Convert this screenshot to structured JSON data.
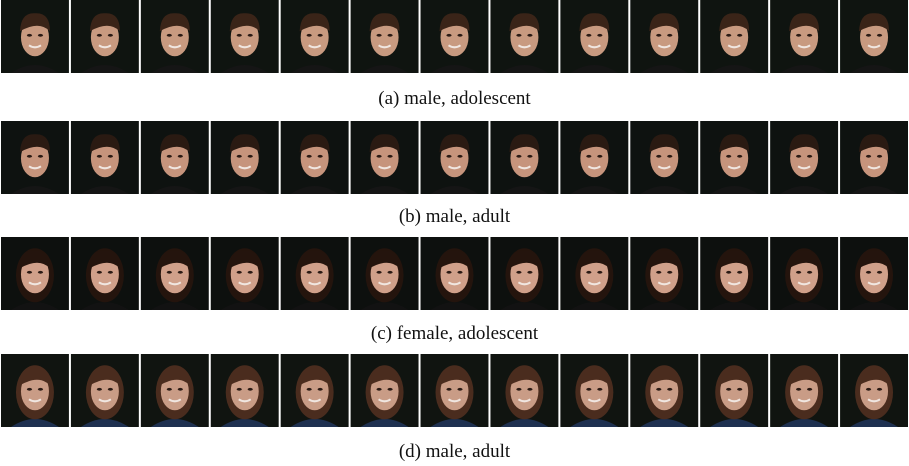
{
  "figure": {
    "rows": [
      {
        "caption": "(a) male, adolescent"
      },
      {
        "caption": "(b) male, adult"
      },
      {
        "caption": "(c) female, adolescent"
      },
      {
        "caption": "(d) male, adult"
      }
    ]
  }
}
